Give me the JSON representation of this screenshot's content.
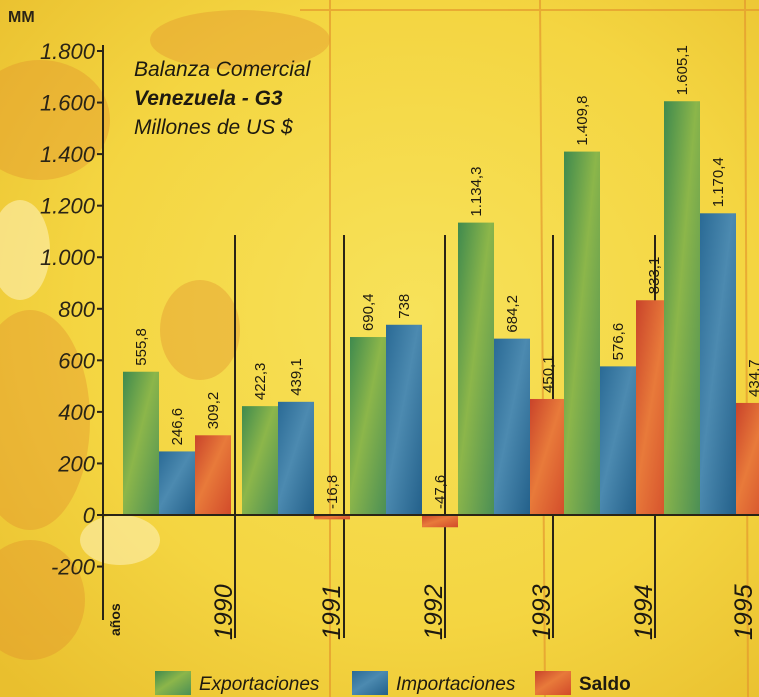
{
  "chart_data": {
    "type": "bar",
    "title": "Balanza Comercial",
    "subtitle": "Venezuela - G3",
    "units_label": "Millones de US $",
    "ylabel": "MM",
    "xlabel": "años",
    "ylim": [
      -200,
      1800
    ],
    "yticks": [
      -200,
      0,
      200,
      400,
      600,
      800,
      1000,
      1200,
      1400,
      1600,
      1800
    ],
    "ytick_labels": [
      "-200",
      "0",
      "200",
      "400",
      "600",
      "800",
      "1.000",
      "1.200",
      "1.400",
      "1.600",
      "1.800"
    ],
    "categories": [
      "1990",
      "1991",
      "1992",
      "1993",
      "1994",
      "1995"
    ],
    "series": [
      {
        "name": "Exportaciones",
        "color": "#5f9a45",
        "values": [
          555.8,
          422.3,
          690.4,
          1134.3,
          1409.8,
          1605.1
        ],
        "labels": [
          "555,8",
          "422,3",
          "690,4",
          "1.134,3",
          "1.409,8",
          "1.605,1"
        ]
      },
      {
        "name": "Importaciones",
        "color": "#2f6f95",
        "values": [
          246.6,
          439.1,
          738,
          684.2,
          576.6,
          1170.4
        ],
        "labels": [
          "246,6",
          "439,1",
          "738",
          "684,2",
          "576,6",
          "1.170,4"
        ]
      },
      {
        "name": "Saldo",
        "color": "#d9552b",
        "values": [
          309.2,
          -16.8,
          -47.6,
          450.1,
          833.1,
          434.7
        ],
        "labels": [
          "309,2",
          "-16,8",
          "-47,6",
          "450,1",
          "833,1",
          "434,7"
        ]
      }
    ],
    "legend_position": "bottom",
    "grid": false
  }
}
